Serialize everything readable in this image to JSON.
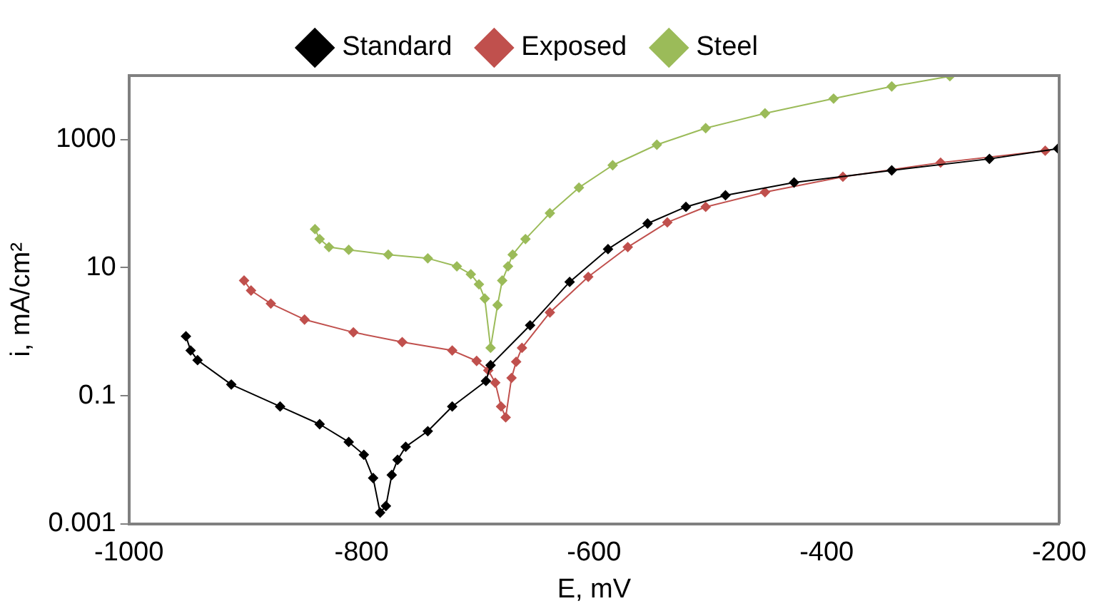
{
  "chart_data": {
    "type": "line",
    "xlabel": "E, mV",
    "ylabel": "i, mA/cm²",
    "log": "y",
    "grid": false,
    "legend": "top",
    "marker": "diamond",
    "line_style": "solid",
    "xlim": [
      -1000,
      -200
    ],
    "xticks": [
      -1000,
      -800,
      -600,
      -400,
      -200
    ],
    "ylim": [
      0.001,
      10000
    ],
    "yticks": [
      0.001,
      0.1,
      10,
      1000
    ],
    "series": [
      {
        "name": "Standard",
        "color": "#000000",
        "x": [
          -951,
          -947,
          -941,
          -912,
          -870,
          -836,
          -811,
          -798,
          -790,
          -784,
          -779,
          -774,
          -769,
          -762,
          -743,
          -722,
          -693,
          -689,
          -655,
          -621,
          -588,
          -554,
          -521,
          -487,
          -428,
          -344,
          -260,
          -201
        ],
        "values": [
          0.85,
          0.51,
          0.36,
          0.15,
          0.068,
          0.036,
          0.019,
          0.012,
          0.0052,
          0.0015,
          0.0019,
          0.0058,
          0.01,
          0.016,
          0.028,
          0.068,
          0.17,
          0.3,
          1.26,
          6,
          19.5,
          49,
          89,
          135,
          214,
          331,
          500,
          724
        ]
      },
      {
        "name": "Exposed",
        "color": "#c0504d",
        "x": [
          -901,
          -895,
          -878,
          -849,
          -807,
          -765,
          -722,
          -701,
          -691,
          -685,
          -680,
          -676,
          -671,
          -667,
          -662,
          -638,
          -605,
          -571,
          -537,
          -504,
          -453,
          -386,
          -302,
          -212
        ],
        "values": [
          6.3,
          4.4,
          2.75,
          1.55,
          0.98,
          0.69,
          0.51,
          0.35,
          0.25,
          0.16,
          0.068,
          0.046,
          0.19,
          0.34,
          0.56,
          2,
          7.2,
          21,
          51,
          89,
          151,
          263,
          437,
          670
        ]
      },
      {
        "name": "Steel",
        "color": "#9bbb59",
        "x": [
          -840,
          -836,
          -828,
          -811,
          -777,
          -743,
          -718,
          -706,
          -699,
          -694,
          -689,
          -683,
          -679,
          -674,
          -670,
          -659,
          -638,
          -613,
          -584,
          -546,
          -504,
          -453,
          -394,
          -344,
          -294
        ],
        "values": [
          40,
          28,
          21,
          19,
          16,
          14,
          10.5,
          7.9,
          5.5,
          3.3,
          0.56,
          2.6,
          6.3,
          10.5,
          16,
          28,
          71,
          178,
          398,
          832,
          1510,
          2570,
          4370,
          6760,
          9770
        ]
      }
    ]
  }
}
